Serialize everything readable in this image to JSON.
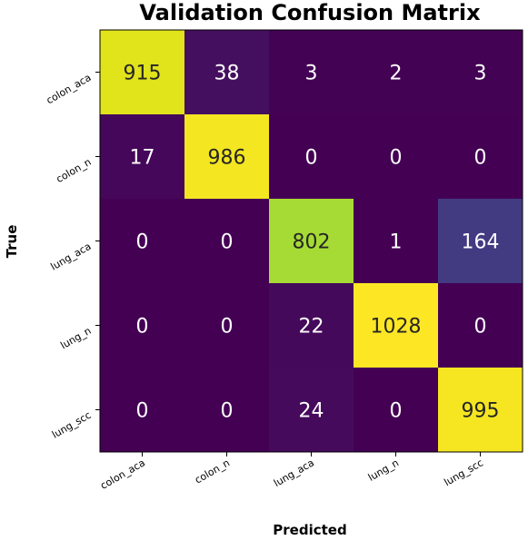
{
  "chart_data": {
    "type": "heatmap",
    "title": "Validation Confusion Matrix",
    "xlabel": "Predicted",
    "ylabel": "True",
    "x_categories": [
      "colon_aca",
      "colon_n",
      "lung_aca",
      "lung_n",
      "lung_scc"
    ],
    "y_categories": [
      "colon_aca",
      "colon_n",
      "lung_aca",
      "lung_n",
      "lung_scc"
    ],
    "values": [
      [
        915,
        38,
        3,
        2,
        3
      ],
      [
        17,
        986,
        0,
        0,
        0
      ],
      [
        0,
        0,
        802,
        1,
        164
      ],
      [
        0,
        0,
        22,
        1028,
        0
      ],
      [
        0,
        0,
        24,
        0,
        995
      ]
    ],
    "colormap": "viridis",
    "vmin": 0,
    "vmax": 1028,
    "text_color_dark": "#262626",
    "text_color_light": "#ffffff",
    "grid": false
  }
}
